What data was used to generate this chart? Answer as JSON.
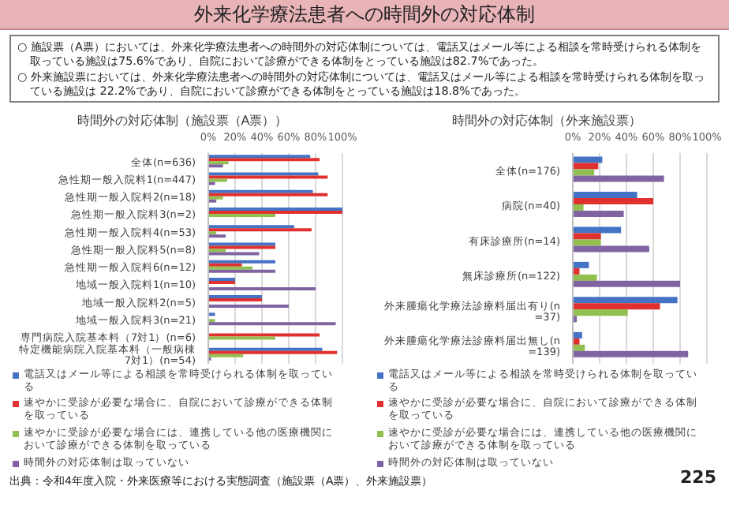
{
  "chart_data": [
    {
      "type": "bar",
      "orientation": "horizontal",
      "title": "時間外の対応体制（施設票（A票））",
      "annotations": [
        "外来化学療法患者への時間外の対応体制",
        "○ 施設票（A票）においては、外来化学療法患者への時間外の対応体制については、電話又はメール等による相談を常時受けられる体制を取っている施設は75.6%であり、自院において診療ができる体制をとっている施設は82.7%であった。",
        "○ 外来施設票においては、外来化学療法患者への時間外の対応体制については、電話又はメール等による相談を常時受けられる体制を取っている施設は 22.2%であり、自院において診療ができる体制をとっている施設は18.8%であった。",
        "出典：令和4年度入院・外来医療等における実態調査（施設票（A票）、外来施設票）",
        "225"
      ],
      "categories": [
        "全体(n=636)",
        "急性期一般入院料1(n=447)",
        "急性期一般入院料2(n=18)",
        "急性期一般入院料3(n=2)",
        "急性期一般入院料4(n=53)",
        "急性期一般入院料5(n=8)",
        "急性期一般入院料6(n=12)",
        "地域一般入院料1(n=10)",
        "地域一般入院料2(n=5)",
        "地域一般入院料3(n=21)",
        "専門病院入院基本料（7対1）(n=6)",
        "特定機能病院入院基本料（一般病棟7対1）(n=54)"
      ],
      "series": [
        {
          "name": "電話又はメール等による相談を常時受けられる体制を取っている",
          "color": "#4472c4",
          "values": [
            76,
            82,
            78,
            100,
            64,
            50,
            50,
            20,
            40,
            5,
            0,
            85
          ]
        },
        {
          "name": "速やかに受診が必要な場合に、自院において診療ができる体制を取っている",
          "color": "#e0312f",
          "values": [
            83,
            89,
            89,
            100,
            77,
            50,
            25,
            20,
            40,
            0,
            83,
            96
          ]
        },
        {
          "name": "速やかに受診が必要な場合には、連携している他の医療機関において診療ができる体制を取っている",
          "color": "#92c050",
          "values": [
            15,
            14,
            11,
            50,
            6,
            13,
            33,
            0,
            0,
            5,
            50,
            26
          ]
        },
        {
          "name": "時間外の対応体制は取っていない",
          "color": "#8064a2",
          "values": [
            11,
            5,
            6,
            0,
            13,
            38,
            50,
            80,
            60,
            95,
            0,
            2
          ]
        }
      ],
      "xlim": [
        0,
        100
      ],
      "xticks": [
        {
          "value": 0,
          "label": "0%"
        },
        {
          "value": 20,
          "label": "20%"
        },
        {
          "value": 40,
          "label": "40%"
        },
        {
          "value": 60,
          "label": "60%"
        },
        {
          "value": 80,
          "label": "80%"
        },
        {
          "value": 100,
          "label": "100%"
        }
      ],
      "grid": "x",
      "legend": "bottom"
    },
    {
      "type": "bar",
      "orientation": "horizontal",
      "title": "時間外の対応体制（外来施設票）",
      "categories": [
        "全体(n=176)",
        "病院(n=40)",
        "有床診療所(n=14)",
        "無床診療所(n=122)",
        "外来腫瘍化学療法診療料届出有り(n=37)",
        "外来腫瘍化学療法診療料届出無し(n=139)"
      ],
      "series": [
        {
          "name": "電話又はメール等による相談を常時受けられる体制を取っている",
          "color": "#4472c4",
          "values": [
            22,
            48,
            36,
            12,
            78,
            7
          ]
        },
        {
          "name": "速やかに受診が必要な場合に、自院において診療ができる体制を取っている",
          "color": "#e0312f",
          "values": [
            19,
            60,
            21,
            5,
            65,
            5
          ]
        },
        {
          "name": "速やかに受診が必要な場合には、連携している他の医療機関において診療ができる体制を取っている",
          "color": "#92c050",
          "values": [
            16,
            8,
            21,
            18,
            41,
            9
          ]
        },
        {
          "name": "時間外の対応体制は取っていない",
          "color": "#8064a2",
          "values": [
            68,
            38,
            57,
            80,
            3,
            86
          ]
        }
      ],
      "xlim": [
        0,
        100
      ],
      "xticks": [
        {
          "value": 0,
          "label": "0%"
        },
        {
          "value": 20,
          "label": "20%"
        },
        {
          "value": 40,
          "label": "40%"
        },
        {
          "value": 60,
          "label": "60%"
        },
        {
          "value": 80,
          "label": "80%"
        },
        {
          "value": 100,
          "label": "100%"
        }
      ],
      "grid": "x",
      "legend": "bottom"
    }
  ]
}
